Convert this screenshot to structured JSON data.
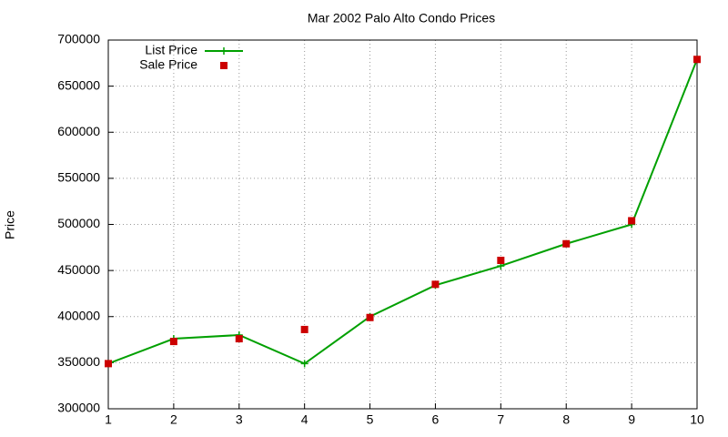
{
  "chart_data": {
    "type": "line",
    "title": "Mar 2002 Palo Alto Condo Prices",
    "y_label": "Price",
    "x": [
      1,
      2,
      3,
      4,
      5,
      6,
      7,
      8,
      9,
      10
    ],
    "series": [
      {
        "name": "List Price",
        "color": "#00a000",
        "style": "linespoints",
        "values": [
          349000,
          376000,
          380000,
          349000,
          400000,
          434000,
          455000,
          479000,
          500000,
          679000
        ]
      },
      {
        "name": "Sale Price",
        "color": "#cc0000",
        "style": "points",
        "values": [
          349000,
          373000,
          376000,
          386000,
          399000,
          435000,
          461000,
          479000,
          504000,
          679000
        ]
      }
    ],
    "xlim": [
      1,
      10
    ],
    "xticks": [
      1,
      2,
      3,
      4,
      5,
      6,
      7,
      8,
      9,
      10
    ],
    "ylim": [
      300000,
      700000
    ],
    "yticks": [
      300000,
      350000,
      400000,
      450000,
      500000,
      550000,
      600000,
      650000,
      700000
    ],
    "grid": true,
    "legend": "top-left"
  }
}
